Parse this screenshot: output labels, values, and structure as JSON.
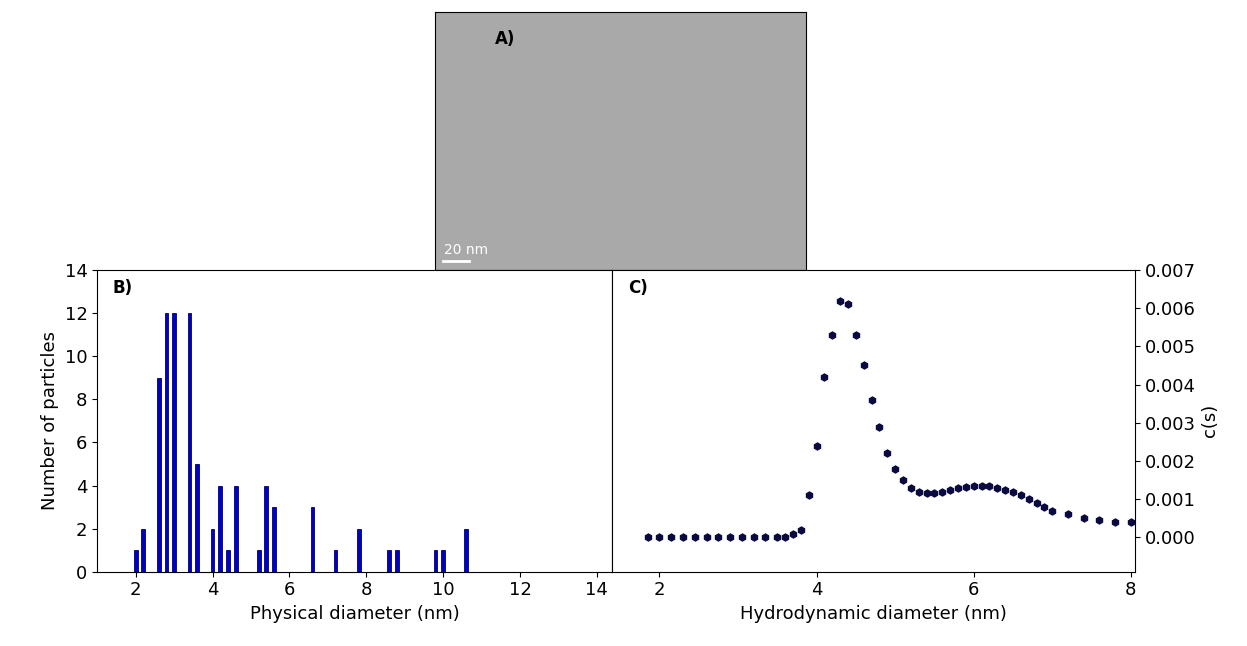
{
  "chart_data": [
    {
      "type": "image",
      "label": "A)",
      "scale_bar": "20 nm",
      "color": "#a9a9a9"
    },
    {
      "type": "bar",
      "label": "B)",
      "x_label": "Physical diameter (nm)",
      "y_label": "Number of particles",
      "x": [
        2.0,
        2.2,
        2.6,
        2.8,
        3.0,
        3.4,
        3.6,
        4.0,
        4.2,
        4.4,
        4.6,
        5.2,
        5.4,
        5.6,
        6.6,
        7.2,
        7.8,
        8.6,
        8.8,
        9.8,
        10.0,
        10.6
      ],
      "values": [
        1,
        2,
        9,
        12,
        12,
        12,
        5,
        2,
        4,
        1,
        4,
        1,
        4,
        3,
        3,
        1,
        2,
        1,
        1,
        1,
        1,
        2
      ],
      "color": "#0000cc",
      "xlim": [
        1,
        14.4
      ],
      "xticks": [
        2,
        4,
        6,
        8,
        10,
        12,
        14
      ],
      "ylim": [
        0,
        14
      ],
      "yticks": [
        0,
        2,
        4,
        6,
        8,
        10,
        12,
        14
      ]
    },
    {
      "type": "scatter",
      "label": "C)",
      "x_label": "Hydrodynamic diameter (nm)",
      "y_label": "c(s)",
      "x": [
        1.85,
        2.0,
        2.15,
        2.3,
        2.45,
        2.6,
        2.75,
        2.9,
        3.05,
        3.2,
        3.35,
        3.5,
        3.6,
        3.7,
        3.8,
        3.9,
        4.0,
        4.1,
        4.2,
        4.3,
        4.4,
        4.5,
        4.6,
        4.7,
        4.8,
        4.9,
        5.0,
        5.1,
        5.2,
        5.3,
        5.4,
        5.5,
        5.6,
        5.7,
        5.8,
        5.9,
        6.0,
        6.1,
        6.2,
        6.3,
        6.4,
        6.5,
        6.6,
        6.7,
        6.8,
        6.9,
        7.0,
        7.2,
        7.4,
        7.6,
        7.8,
        8.0
      ],
      "values": [
        0.0,
        0.0,
        0.0,
        0.0,
        0.0,
        0.0,
        0.0,
        0.0,
        0.0,
        0.0,
        0.0,
        0.0,
        0.0,
        0.0001,
        0.0002,
        0.0011,
        0.0024,
        0.0042,
        0.0053,
        0.0062,
        0.0061,
        0.0053,
        0.0045,
        0.0036,
        0.0029,
        0.0022,
        0.0018,
        0.0015,
        0.0013,
        0.0012,
        0.00115,
        0.00115,
        0.0012,
        0.00125,
        0.0013,
        0.00132,
        0.00135,
        0.00135,
        0.00134,
        0.0013,
        0.00125,
        0.0012,
        0.0011,
        0.001,
        0.0009,
        0.0008,
        0.0007,
        0.0006,
        0.0005,
        0.00045,
        0.0004,
        0.0004
      ],
      "color": "#0a0a40",
      "marker": "hexagon",
      "xlim": [
        1.4,
        8.05
      ],
      "xticks": [
        2,
        4,
        6,
        8
      ],
      "ylim": [
        -0.0009,
        0.007
      ],
      "yticks": [
        {
          "value": 0.0,
          "label": "0.000"
        },
        {
          "value": 0.001,
          "label": "0.001"
        },
        {
          "value": 0.002,
          "label": "0.002"
        },
        {
          "value": 0.003,
          "label": "0.003"
        },
        {
          "value": 0.004,
          "label": "0.004"
        },
        {
          "value": 0.005,
          "label": "0.005"
        },
        {
          "value": 0.006,
          "label": "0.006"
        },
        {
          "value": 0.007,
          "label": "0.007"
        }
      ]
    }
  ]
}
